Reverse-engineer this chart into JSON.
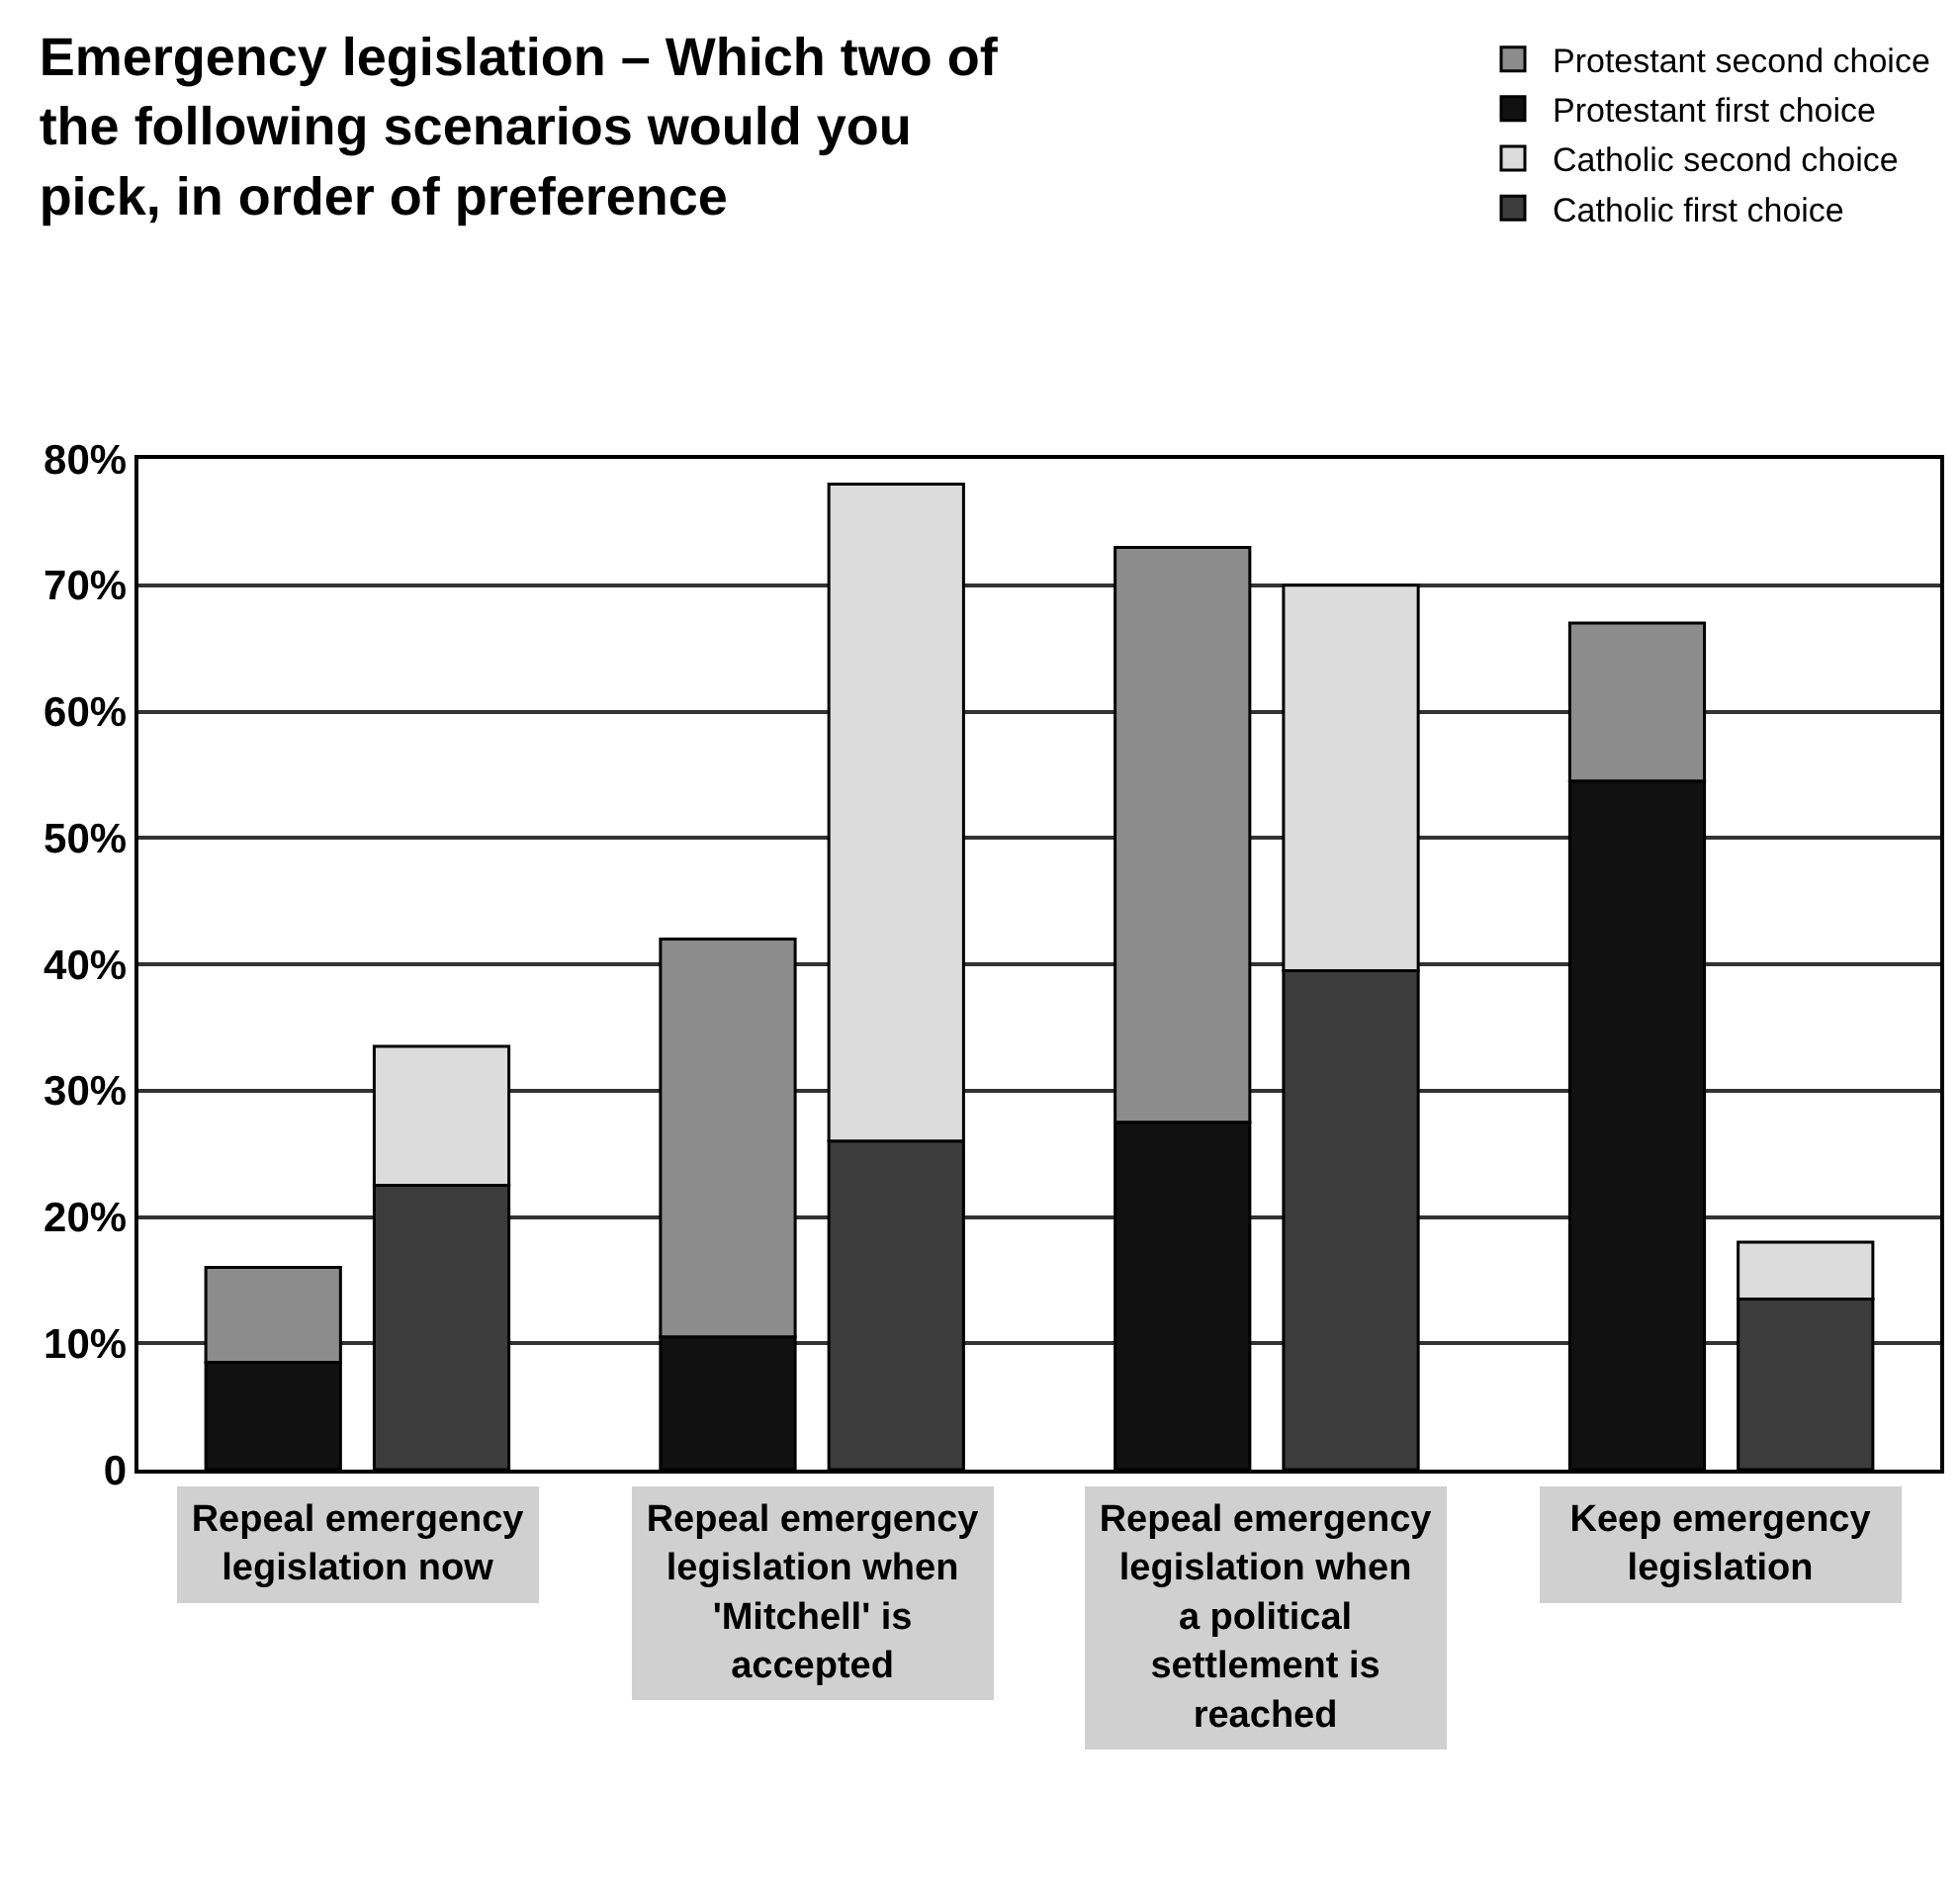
{
  "chart_data": {
    "type": "bar",
    "stacked": true,
    "title": "Emergency legislation – Which two of  the following scenarios would you pick, in order of preference",
    "categories": [
      null,
      null,
      null,
      null,
      null,
      null,
      null,
      null
    ],
    "annotations": [
      "Repeal emergency legislation now",
      "Repeal emergency legislation when 'Mitchell' is accepted",
      "Repeal emergency legislation when a political settlement is reached",
      "Keep emergency legislation"
    ],
    "series": [
      {
        "name": "Protestant first choice",
        "color": "#111111",
        "values": [
          8.5,
          null,
          10.5,
          null,
          27.5,
          null,
          54.5,
          null
        ]
      },
      {
        "name": "Protestant second choice",
        "color": "#8c8c8c",
        "values": [
          7.5,
          null,
          31.5,
          null,
          45.5,
          null,
          12.5,
          null
        ]
      },
      {
        "name": "Catholic first choice",
        "color": "#3c3c3c",
        "values": [
          null,
          22.5,
          null,
          26,
          null,
          39.5,
          null,
          13.5
        ]
      },
      {
        "name": "Catholic second choice",
        "color": "#dcdcdc",
        "values": [
          null,
          11,
          null,
          52,
          null,
          30.5,
          null,
          4.5
        ]
      }
    ],
    "ylim": [
      0,
      80
    ],
    "yticks": [
      0,
      {
        "value": 10,
        "label": "10%"
      },
      {
        "value": 20,
        "label": "20%"
      },
      {
        "value": 30,
        "label": "30%"
      },
      {
        "value": 40,
        "label": "40%"
      },
      {
        "value": 50,
        "label": "50%"
      },
      {
        "value": 60,
        "label": "60%"
      },
      {
        "value": 70,
        "label": "70%"
      },
      {
        "value": 80,
        "label": "80%"
      }
    ],
    "grid": "y",
    "legend": "top right"
  }
}
